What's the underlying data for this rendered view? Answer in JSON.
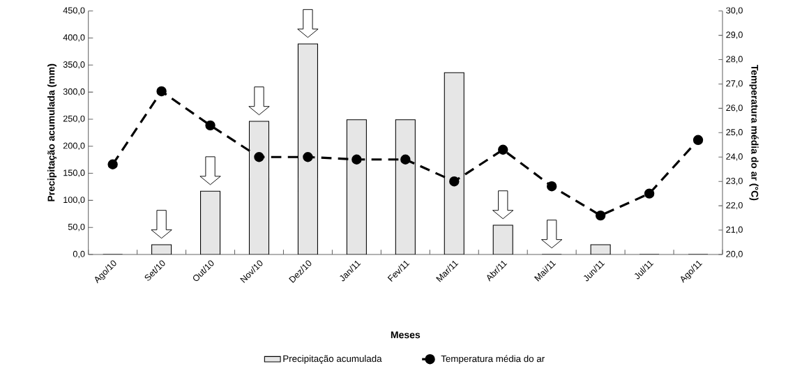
{
  "chart_data": {
    "type": "bar",
    "xlabel": "Meses",
    "ylabel": "Precipitação acumulada  (mm)",
    "y2label": "Temperatura média do ar (°C)",
    "categories": [
      "Ago/10",
      "Set/10",
      "Out/10",
      "Nov/10",
      "Dez/10",
      "Jan/11",
      "Fev/11",
      "Mar/11",
      "Abr/11",
      "Mai/11",
      "Jun/11",
      "Jul/11",
      "Ago/11"
    ],
    "series": [
      {
        "name": "Precipitação acumulada",
        "color": "#e6e6e6",
        "values": [
          0,
          18,
          117,
          246,
          389,
          249,
          249,
          336,
          54,
          0,
          18,
          0,
          0
        ]
      },
      {
        "name": "Temperatura média do ar",
        "type": "line",
        "axis": "y2",
        "color": "#000000",
        "values": [
          23.7,
          26.7,
          25.3,
          24.0,
          24.0,
          23.9,
          23.9,
          23.0,
          24.3,
          22.8,
          21.6,
          22.5,
          24.7
        ]
      }
    ],
    "ylim": [
      0,
      450
    ],
    "yticks": [
      {
        "value": 0,
        "label": "0,0"
      },
      {
        "value": 50,
        "label": "50,0"
      },
      {
        "value": 100,
        "label": "100,0"
      },
      {
        "value": 150,
        "label": "150,0"
      },
      {
        "value": 200,
        "label": "200,0"
      },
      {
        "value": 250,
        "label": "250,0"
      },
      {
        "value": 300,
        "label": "300,0"
      },
      {
        "value": 350,
        "label": "350,0"
      },
      {
        "value": 400,
        "label": "400,0"
      },
      {
        "value": 450,
        "label": "450,0"
      }
    ],
    "y2lim": [
      20,
      30
    ],
    "y2ticks": [
      {
        "value": 20,
        "label": "20,0"
      },
      {
        "value": 21,
        "label": "21,0"
      },
      {
        "value": 22,
        "label": "22,0"
      },
      {
        "value": 23,
        "label": "23,0"
      },
      {
        "value": 24,
        "label": "24,0"
      },
      {
        "value": 25,
        "label": "25,0"
      },
      {
        "value": 26,
        "label": "26,0"
      },
      {
        "value": 27,
        "label": "27,0"
      },
      {
        "value": 28,
        "label": "28,0"
      },
      {
        "value": 29,
        "label": "29,0"
      },
      {
        "value": 30,
        "label": "30,0"
      }
    ],
    "legend": "bottom",
    "marker": "circle",
    "line_style": "dashed"
  }
}
